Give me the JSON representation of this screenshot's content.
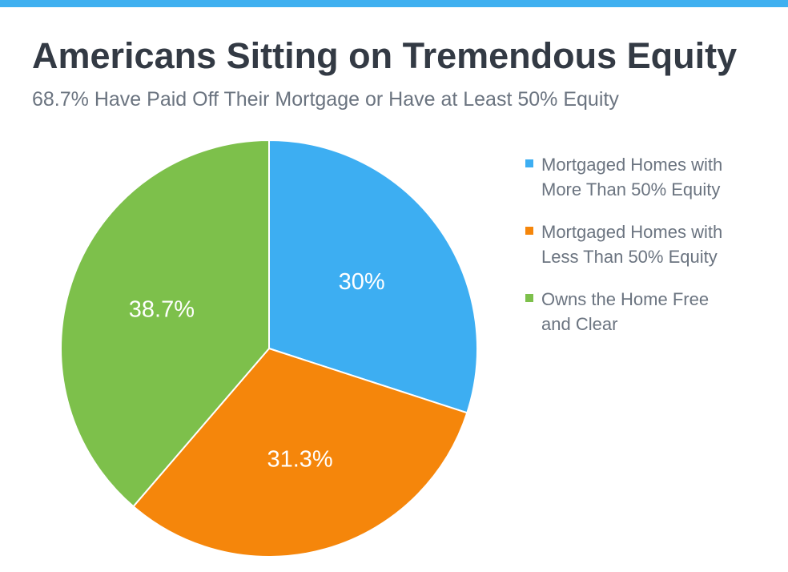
{
  "header": {
    "title": "Americans Sitting on Tremendous Equity",
    "subtitle": "68.7% Have Paid Off Their Mortgage or Have at Least 50% Equity"
  },
  "theme": {
    "top_bar_color": "#3fb0f0"
  },
  "chart_data": {
    "type": "pie",
    "title": "Americans Sitting on Tremendous Equity",
    "subtitle": "68.7% Have Paid Off Their Mortgage or Have at Least 50% Equity",
    "legend_position": "right",
    "slices": [
      {
        "name": "Mortgaged Homes with\nMore Than 50% Equity",
        "value": 30,
        "label": "30%",
        "color": "#3daef2"
      },
      {
        "name": "Mortgaged Homes with\nLess Than 50% Equity",
        "value": 31.3,
        "label": "31.3%",
        "color": "#f5860b"
      },
      {
        "name": "Owns the Home Free\nand Clear",
        "value": 38.7,
        "label": "38.7%",
        "color": "#7dc04b"
      }
    ]
  }
}
